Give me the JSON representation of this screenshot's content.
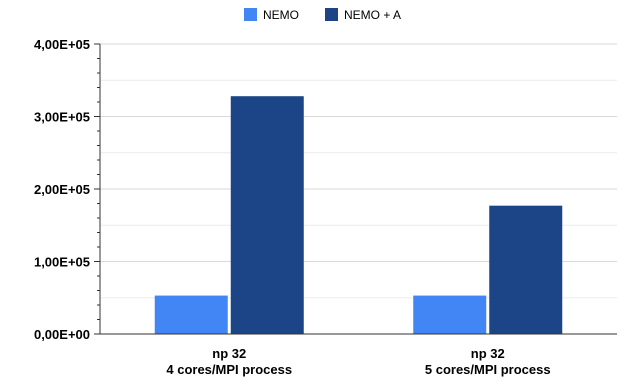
{
  "chart_data": {
    "type": "bar",
    "categories": [
      [
        "np 32",
        "4 cores/MPI process"
      ],
      [
        "np 32",
        "5 cores/MPI process"
      ]
    ],
    "series": [
      {
        "name": "NEMO",
        "color": "#4285f4",
        "values": [
          53000,
          53000
        ]
      },
      {
        "name": "NEMO + A",
        "color": "#1c4587",
        "values": [
          328000,
          177000
        ]
      }
    ],
    "ylim": [
      0,
      400000
    ],
    "y_ticks": [
      {
        "value": 0,
        "label": "0,00E+00"
      },
      {
        "value": 100000,
        "label": "1,00E+05"
      },
      {
        "value": 200000,
        "label": "2,00E+05"
      },
      {
        "value": 300000,
        "label": "3,00E+05"
      },
      {
        "value": 400000,
        "label": "4,00E+05"
      }
    ],
    "grid": true,
    "legend_position": "top-center",
    "colors": {
      "grid": "#d9d9d9",
      "axis": "#333333"
    }
  }
}
